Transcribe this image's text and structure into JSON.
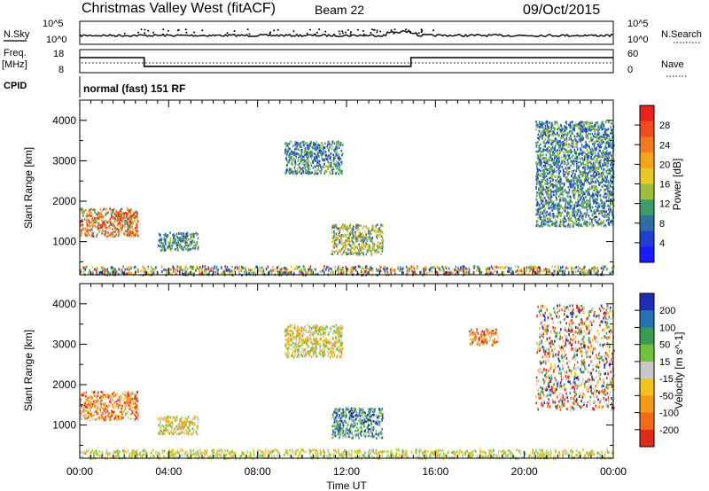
{
  "header": {
    "station": "Christmas Valley West (fitACF)",
    "beam": "Beam 22",
    "date": "09/Oct/2015"
  },
  "status_panels": {
    "nsky_label": "N.Sky",
    "nsky_ticks": [
      "10^5",
      "10^0"
    ],
    "nsearch_label": "N.Search",
    "nsearch_ticks": [
      "10^5",
      "10^0"
    ],
    "freq_label": "Freq.",
    "freq_unit": "[MHz]",
    "freq_ticks": [
      "18",
      "8"
    ],
    "nave_label": "Nave",
    "nave_ticks": [
      "60",
      "0"
    ],
    "freq_steps": [
      {
        "t": 0.0,
        "v": 14.8
      },
      {
        "t": 2.9,
        "v": 14.8
      },
      {
        "t": 2.9,
        "v": 10.3
      },
      {
        "t": 14.9,
        "v": 10.3
      },
      {
        "t": 14.9,
        "v": 14.8
      },
      {
        "t": 24.0,
        "v": 14.8
      }
    ],
    "cpid_label": "CPID",
    "cpid_text": "normal (fast) 151 RF"
  },
  "time_axis": {
    "ticks": [
      "00:00",
      "04:00",
      "08:00",
      "12:00",
      "16:00",
      "20:00",
      "00:00"
    ],
    "label": "Time UT",
    "range_hours": [
      0,
      24
    ]
  },
  "range_axis": {
    "label": "Slant Range [km]",
    "ticks": [
      "4000",
      "3000",
      "2000",
      "1000"
    ],
    "ylim_km": [
      180,
      4500
    ]
  },
  "chart_data": [
    {
      "type": "heatmap",
      "panel": "power",
      "x_unit": "hours UT",
      "y_unit": "km",
      "colorbar": {
        "label": "Power [dB]",
        "ticks": [
          "28",
          "24",
          "20",
          "16",
          "12",
          "8",
          "4"
        ],
        "colors": [
          "#e8231f",
          "#f04b20",
          "#f27a1e",
          "#f6a21c",
          "#e8c92a",
          "#9fbe3e",
          "#3f9c6a",
          "#2f6fa0",
          "#1e3fcf",
          "#1a1aff"
        ]
      },
      "regions": [
        {
          "t0": 0.0,
          "t1": 2.6,
          "r0": 1150,
          "r1": 1850,
          "level": "high"
        },
        {
          "t0": 3.5,
          "t1": 5.3,
          "r0": 800,
          "r1": 1250,
          "level": "low"
        },
        {
          "t0": 9.2,
          "t1": 11.8,
          "r0": 2700,
          "r1": 3500,
          "level": "low"
        },
        {
          "t0": 11.3,
          "t1": 13.6,
          "r0": 700,
          "r1": 1450,
          "level": "mid"
        },
        {
          "t0": 20.5,
          "t1": 24.0,
          "r0": 1400,
          "r1": 4000,
          "level": "low"
        },
        {
          "t0": 0.0,
          "t1": 24.0,
          "r0": 200,
          "r1": 420,
          "level": "mixed"
        }
      ]
    },
    {
      "type": "heatmap",
      "panel": "velocity",
      "x_unit": "hours UT",
      "y_unit": "km",
      "colorbar": {
        "label": "Velocity [m s^-1]",
        "ticks": [
          "200",
          "100",
          "50",
          "15",
          "-15",
          "-50",
          "-100",
          "-200"
        ],
        "colors": [
          "#1a2fb5",
          "#2a6faf",
          "#3c9a55",
          "#6fc23a",
          "#c8c8c8",
          "#f3c21c",
          "#f59a1a",
          "#f06a1a",
          "#e02a1a"
        ]
      },
      "regions": [
        {
          "t0": 0.0,
          "t1": 2.6,
          "r0": 1150,
          "r1": 1850,
          "level": "toward"
        },
        {
          "t0": 3.5,
          "t1": 5.3,
          "r0": 800,
          "r1": 1250,
          "level": "slow"
        },
        {
          "t0": 9.2,
          "t1": 11.8,
          "r0": 2700,
          "r1": 3500,
          "level": "slow"
        },
        {
          "t0": 11.3,
          "t1": 13.6,
          "r0": 700,
          "r1": 1450,
          "level": "away"
        },
        {
          "t0": 17.5,
          "t1": 18.8,
          "r0": 3000,
          "r1": 3400,
          "level": "toward"
        },
        {
          "t0": 20.5,
          "t1": 24.0,
          "r0": 1400,
          "r1": 4000,
          "level": "mixed"
        },
        {
          "t0": 0.0,
          "t1": 24.0,
          "r0": 200,
          "r1": 420,
          "level": "ground"
        }
      ]
    }
  ]
}
